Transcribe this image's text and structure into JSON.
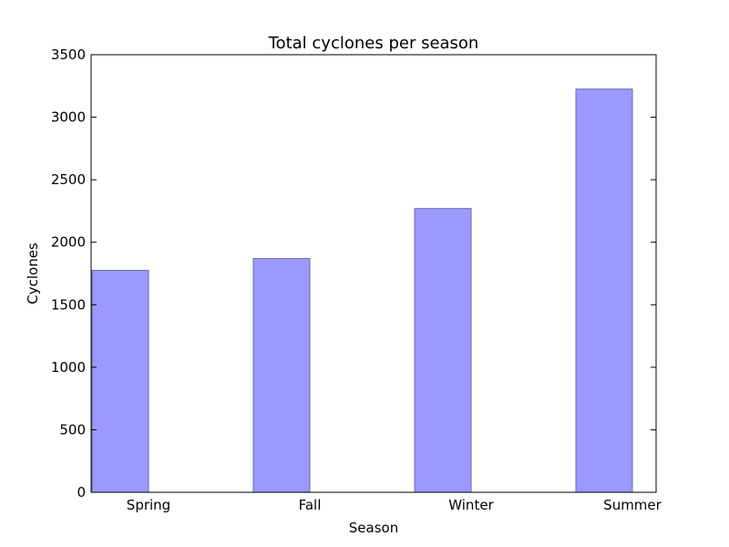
{
  "chart_data": {
    "type": "bar",
    "title": "Total cyclones per season",
    "xlabel": "Season",
    "ylabel": "Cyclones",
    "categories": [
      "Spring",
      "Fall",
      "Winter",
      "Summer"
    ],
    "values": [
      1775,
      1870,
      2270,
      3225
    ],
    "ylim": [
      0,
      3500
    ],
    "yticks": [
      0,
      500,
      1000,
      1500,
      2000,
      2500,
      3000,
      3500
    ],
    "ytick_labels": [
      "0",
      "500",
      "1000",
      "1500",
      "2000",
      "2500",
      "3000",
      "3500"
    ],
    "grid": false,
    "legend": "none",
    "bar_color": "#9999ff",
    "bar_edge_color": "#6a6aa8"
  }
}
